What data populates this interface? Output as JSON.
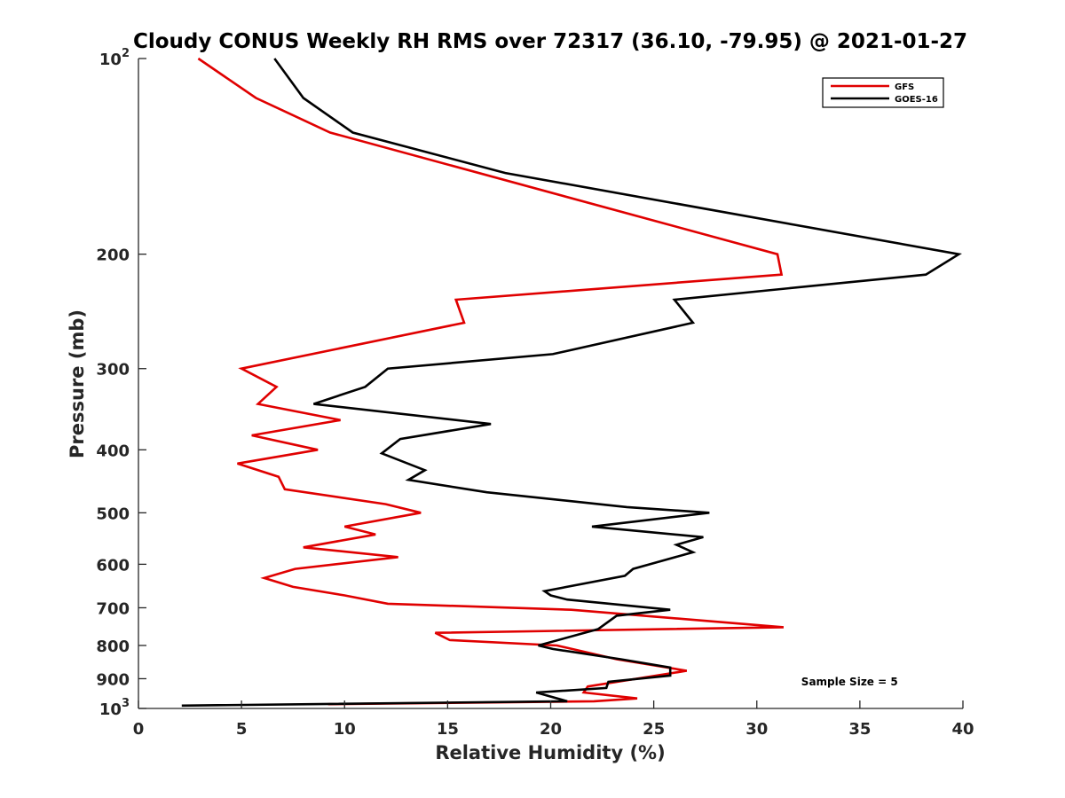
{
  "chart_data": {
    "type": "line",
    "title": "Cloudy CONUS Weekly RH RMS over 72317 (36.10, -79.95) @ 2021-01-27",
    "xlabel": "Relative Humidity (%)",
    "ylabel": "Pressure (mb)",
    "xlim": [
      0,
      40
    ],
    "ylim": [
      100,
      1000
    ],
    "y_scale": "log",
    "y_reversed": true,
    "grid": false,
    "legend_position": "top-right",
    "x_ticks": [
      "0",
      "5",
      "10",
      "15",
      "20",
      "25",
      "30",
      "35",
      "40"
    ],
    "y_ticks": [
      {
        "value": 100,
        "base": "10",
        "exp": "2"
      },
      {
        "value": 200,
        "label": "200"
      },
      {
        "value": 300,
        "label": "300"
      },
      {
        "value": 400,
        "label": "400"
      },
      {
        "value": 500,
        "label": "500"
      },
      {
        "value": 600,
        "label": "600"
      },
      {
        "value": 700,
        "label": "700"
      },
      {
        "value": 800,
        "label": "800"
      },
      {
        "value": 900,
        "label": "900"
      },
      {
        "value": 1000,
        "base": "10",
        "exp": "3"
      }
    ],
    "series": [
      {
        "name": "GFS",
        "color": "#e00000",
        "points": [
          [
            2.9,
            100
          ],
          [
            5.7,
            115
          ],
          [
            9.3,
            130
          ],
          [
            31.0,
            200
          ],
          [
            31.2,
            215
          ],
          [
            15.4,
            235
          ],
          [
            15.8,
            255
          ],
          [
            5.0,
            300
          ],
          [
            6.7,
            320
          ],
          [
            5.8,
            340
          ],
          [
            9.8,
            360
          ],
          [
            5.5,
            380
          ],
          [
            8.7,
            400
          ],
          [
            4.8,
            420
          ],
          [
            6.8,
            440
          ],
          [
            7.1,
            460
          ],
          [
            12.0,
            485
          ],
          [
            13.7,
            500
          ],
          [
            10.0,
            525
          ],
          [
            11.5,
            540
          ],
          [
            8.0,
            565
          ],
          [
            12.6,
            585
          ],
          [
            7.6,
            610
          ],
          [
            6.1,
            630
          ],
          [
            7.5,
            650
          ],
          [
            10.0,
            670
          ],
          [
            12.1,
            690
          ],
          [
            21.0,
            705
          ],
          [
            31.3,
            750
          ],
          [
            14.4,
            765
          ],
          [
            15.1,
            785
          ],
          [
            20.3,
            800
          ],
          [
            23.2,
            840
          ],
          [
            26.6,
            875
          ],
          [
            21.8,
            925
          ],
          [
            21.6,
            945
          ],
          [
            24.2,
            965
          ],
          [
            22.1,
            975
          ],
          [
            9.2,
            985
          ]
        ]
      },
      {
        "name": "GOES-16",
        "color": "#000000",
        "points": [
          [
            6.6,
            100
          ],
          [
            8.0,
            115
          ],
          [
            10.4,
            130
          ],
          [
            17.8,
            150
          ],
          [
            39.8,
            200
          ],
          [
            38.2,
            215
          ],
          [
            26.0,
            235
          ],
          [
            26.9,
            255
          ],
          [
            20.1,
            285
          ],
          [
            12.1,
            300
          ],
          [
            11.0,
            320
          ],
          [
            8.5,
            340
          ],
          [
            17.1,
            365
          ],
          [
            12.7,
            385
          ],
          [
            11.8,
            405
          ],
          [
            13.9,
            430
          ],
          [
            13.1,
            445
          ],
          [
            16.9,
            465
          ],
          [
            23.7,
            490
          ],
          [
            27.7,
            500
          ],
          [
            22.0,
            525
          ],
          [
            27.4,
            545
          ],
          [
            26.1,
            560
          ],
          [
            26.9,
            575
          ],
          [
            24.0,
            610
          ],
          [
            23.6,
            625
          ],
          [
            19.7,
            660
          ],
          [
            20.0,
            670
          ],
          [
            20.8,
            680
          ],
          [
            25.8,
            705
          ],
          [
            23.2,
            720
          ],
          [
            22.3,
            755
          ],
          [
            19.4,
            800
          ],
          [
            20.1,
            810
          ],
          [
            23.4,
            840
          ],
          [
            25.8,
            865
          ],
          [
            25.8,
            890
          ],
          [
            22.8,
            910
          ],
          [
            22.7,
            930
          ],
          [
            19.3,
            945
          ],
          [
            20.8,
            975
          ],
          [
            2.1,
            990
          ]
        ]
      }
    ],
    "legend": [
      {
        "label": "GFS",
        "color": "#e00000"
      },
      {
        "label": "GOES-16",
        "color": "#000000"
      }
    ],
    "annotations": [
      {
        "text": "Sample Size = 5",
        "x": 34.5,
        "y": 910
      }
    ]
  }
}
